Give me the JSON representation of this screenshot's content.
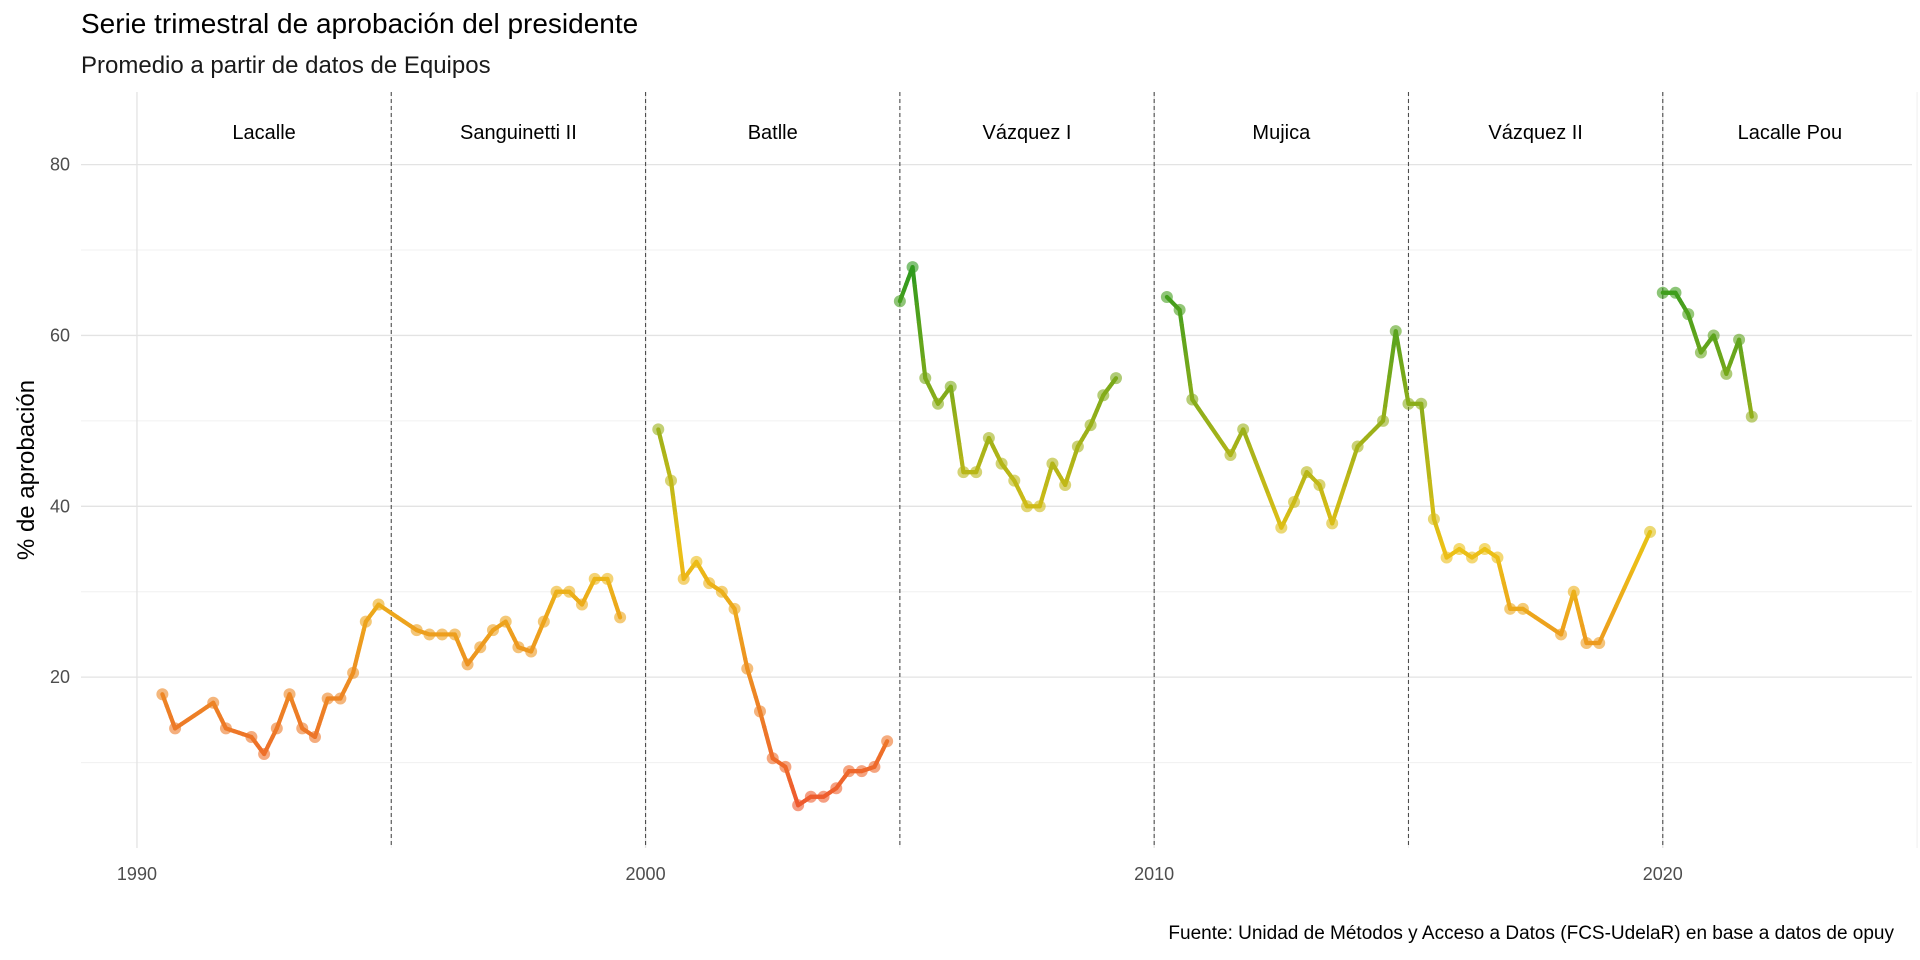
{
  "chart_data": {
    "type": "line",
    "title": "Serie trimestral de aprobación del presidente",
    "subtitle": "Promedio a partir de datos de Equipos",
    "caption": "Fuente: Unidad de Métodos y Acceso a Datos (FCS-UdelaR) en base a datos de opuy",
    "xlabel": "",
    "ylabel": "% de aprobación",
    "xlim": [
      1988.9,
      2024.9
    ],
    "ylim": [
      0,
      88.5
    ],
    "x_ticks": [
      1990,
      2000,
      2010,
      2020
    ],
    "y_ticks": [
      20,
      40,
      60,
      80
    ],
    "grid": true,
    "color_scale": {
      "low": 5,
      "mid": 35,
      "high": 68,
      "low_color": "#ee5a2f",
      "mid_color": "#ecc116",
      "high_color": "#2e9a1e"
    },
    "periods": [
      {
        "name": "Lacalle",
        "start": 1990.0,
        "end": 1995.0
      },
      {
        "name": "Sanguinetti II",
        "start": 1995.0,
        "end": 2000.0
      },
      {
        "name": "Batlle",
        "start": 2000.0,
        "end": 2005.0
      },
      {
        "name": "Vázquez I",
        "start": 2005.0,
        "end": 2010.0
      },
      {
        "name": "Mujica",
        "start": 2010.0,
        "end": 2015.0
      },
      {
        "name": "Vázquez II",
        "start": 2015.0,
        "end": 2020.0
      },
      {
        "name": "Lacalle Pou",
        "start": 2020.0,
        "end": 2025.0
      }
    ],
    "series": [
      {
        "values": [
          [
            1990.5,
            18
          ],
          [
            1990.75,
            14
          ],
          [
            1991.5,
            17
          ],
          [
            1991.75,
            14
          ],
          [
            1992.25,
            13
          ],
          [
            1992.5,
            11
          ],
          [
            1992.75,
            14
          ],
          [
            1993.0,
            18
          ],
          [
            1993.25,
            14
          ],
          [
            1993.5,
            13
          ],
          [
            1993.75,
            17.5
          ],
          [
            1994.0,
            17.5
          ],
          [
            1994.25,
            20.5
          ],
          [
            1994.5,
            26.5
          ],
          [
            1994.75,
            28.5
          ],
          [
            1995.5,
            25.5
          ],
          [
            1995.75,
            25
          ],
          [
            1996.0,
            25
          ],
          [
            1996.25,
            25
          ],
          [
            1996.5,
            21.5
          ],
          [
            1996.75,
            23.5
          ],
          [
            1997.0,
            25.5
          ],
          [
            1997.25,
            26.5
          ],
          [
            1997.5,
            23.5
          ],
          [
            1997.75,
            23
          ],
          [
            1998.0,
            26.5
          ],
          [
            1998.25,
            30
          ],
          [
            1998.5,
            30
          ],
          [
            1998.75,
            28.5
          ],
          [
            1999.0,
            31.5
          ],
          [
            1999.25,
            31.5
          ],
          [
            1999.5,
            27
          ]
        ]
      },
      {
        "values": [
          [
            2000.25,
            49
          ],
          [
            2000.5,
            43
          ],
          [
            2000.75,
            31.5
          ],
          [
            2001.0,
            33.5
          ],
          [
            2001.25,
            31
          ],
          [
            2001.5,
            30
          ],
          [
            2001.75,
            28
          ],
          [
            2002.0,
            21
          ],
          [
            2002.25,
            16
          ],
          [
            2002.5,
            10.5
          ],
          [
            2002.75,
            9.5
          ],
          [
            2003.0,
            5
          ],
          [
            2003.25,
            6
          ],
          [
            2003.5,
            6
          ],
          [
            2003.75,
            7
          ],
          [
            2004.0,
            9
          ],
          [
            2004.25,
            9
          ],
          [
            2004.5,
            9.5
          ],
          [
            2004.75,
            12.5
          ]
        ]
      },
      {
        "values": [
          [
            2005.0,
            64
          ],
          [
            2005.25,
            68
          ],
          [
            2005.5,
            55
          ],
          [
            2005.75,
            52
          ],
          [
            2006.0,
            54
          ],
          [
            2006.25,
            44
          ],
          [
            2006.5,
            44
          ],
          [
            2006.75,
            48
          ],
          [
            2007.0,
            45
          ],
          [
            2007.25,
            43
          ],
          [
            2007.5,
            40
          ],
          [
            2007.75,
            40
          ],
          [
            2008.0,
            45
          ],
          [
            2008.25,
            42.5
          ],
          [
            2008.5,
            47
          ],
          [
            2008.75,
            49.5
          ],
          [
            2009.0,
            53
          ],
          [
            2009.25,
            55
          ]
        ]
      },
      {
        "values": [
          [
            2010.25,
            64.5
          ],
          [
            2010.5,
            63
          ],
          [
            2010.75,
            52.5
          ],
          [
            2011.5,
            46
          ],
          [
            2011.75,
            49
          ],
          [
            2012.5,
            37.5
          ],
          [
            2012.75,
            40.5
          ],
          [
            2013.0,
            44
          ],
          [
            2013.25,
            42.5
          ],
          [
            2013.5,
            38
          ],
          [
            2014.0,
            47
          ],
          [
            2014.5,
            50
          ],
          [
            2014.75,
            60.5
          ],
          [
            2015.0,
            52
          ],
          [
            2015.25,
            52
          ],
          [
            2015.5,
            38.5
          ],
          [
            2015.75,
            34
          ],
          [
            2016.0,
            35
          ],
          [
            2016.25,
            34
          ],
          [
            2016.5,
            35
          ],
          [
            2016.75,
            34
          ],
          [
            2017.0,
            28
          ],
          [
            2017.25,
            28
          ],
          [
            2018.0,
            25
          ],
          [
            2018.25,
            30
          ],
          [
            2018.5,
            24
          ],
          [
            2018.75,
            24
          ],
          [
            2019.75,
            37
          ]
        ]
      },
      {
        "values": [
          [
            2020.0,
            65
          ],
          [
            2020.25,
            65
          ],
          [
            2020.5,
            62.5
          ],
          [
            2020.75,
            58
          ],
          [
            2021.0,
            60
          ],
          [
            2021.25,
            55.5
          ],
          [
            2021.5,
            59.5
          ],
          [
            2021.75,
            50.5
          ]
        ]
      }
    ]
  }
}
